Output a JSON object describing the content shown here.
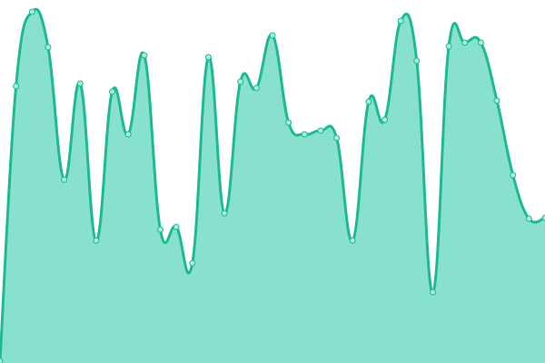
{
  "chart_data": {
    "type": "area",
    "title": "",
    "xlabel": "",
    "ylabel": "",
    "x": [
      0,
      1,
      2,
      3,
      4,
      5,
      6,
      7,
      8,
      9,
      10,
      11,
      12,
      13,
      14,
      15,
      16,
      17,
      18,
      19,
      20,
      21,
      22,
      23,
      24,
      25,
      26,
      27,
      28,
      29,
      30,
      31,
      32,
      33,
      34
    ],
    "values": [
      2,
      305,
      387,
      348,
      202,
      308,
      135,
      299,
      252,
      339,
      147,
      150,
      110,
      337,
      165,
      310,
      303,
      361,
      265,
      252,
      256,
      248,
      135,
      288,
      268,
      377,
      333,
      78,
      349,
      353,
      353,
      289,
      207,
      159,
      160
    ],
    "ylim": [
      0,
      400
    ],
    "grid": false,
    "axes_visible": false,
    "smooth": true,
    "colors": {
      "line": "#1dba93",
      "fill": "#88e0cf",
      "point_fill": "#a8ecdb"
    }
  }
}
